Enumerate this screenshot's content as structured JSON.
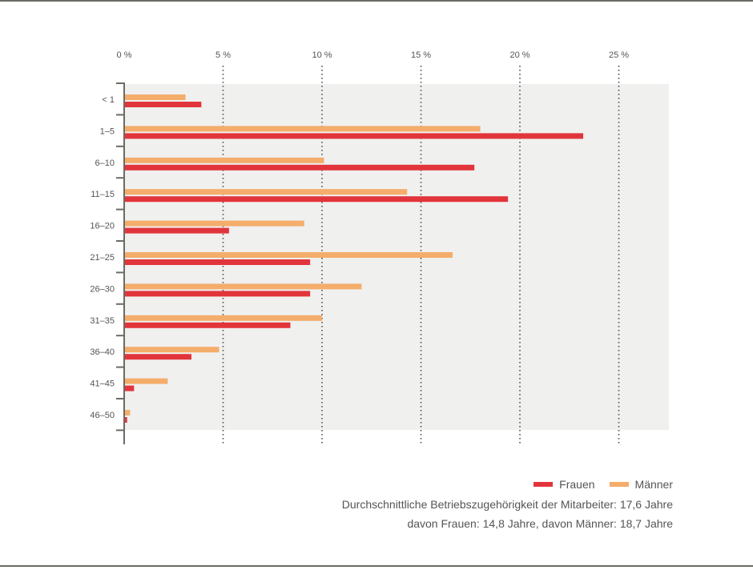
{
  "chart_data": {
    "type": "bar",
    "orientation": "horizontal",
    "categories": [
      "< 1",
      "1–5",
      "6–10",
      "11–15",
      "16–20",
      "21–25",
      "26–30",
      "31–35",
      "36–40",
      "41–45",
      "46–50"
    ],
    "series": [
      {
        "name": "Männer",
        "color": "#f4ad6b",
        "values": [
          3.1,
          18.0,
          10.1,
          14.3,
          9.1,
          16.6,
          12.0,
          10.0,
          4.8,
          2.2,
          0.3
        ]
      },
      {
        "name": "Frauen",
        "color": "#e2343b",
        "values": [
          3.9,
          23.2,
          17.7,
          19.4,
          5.3,
          9.4,
          9.4,
          8.4,
          3.4,
          0.5,
          0.15
        ]
      }
    ],
    "x_ticks": [
      {
        "value": 0,
        "label": "0 %"
      },
      {
        "value": 5,
        "label": "5 %"
      },
      {
        "value": 10,
        "label": "10 %"
      },
      {
        "value": 15,
        "label": "15 %"
      },
      {
        "value": 20,
        "label": "20 %"
      },
      {
        "value": 25,
        "label": "25 %"
      }
    ],
    "xlim": [
      0,
      27.5
    ],
    "grid": "dotted vertical at ticks",
    "legend_position": "bottom-right"
  },
  "legend": [
    {
      "label": "Frauen",
      "color": "#e2343b"
    },
    {
      "label": "Männer",
      "color": "#f4ad6b"
    }
  ],
  "notes": {
    "line1": "Durchschnittliche Betriebszugehörigkeit der Mitarbeiter: 17,6 Jahre",
    "line2": "davon Frauen: 14,8 Jahre, davon Männer: 18,7 Jahre"
  },
  "colors": {
    "plot_bg": "#f0f0ef",
    "axis": "#6b6b66",
    "grid": "#555555",
    "text": "#555555"
  }
}
